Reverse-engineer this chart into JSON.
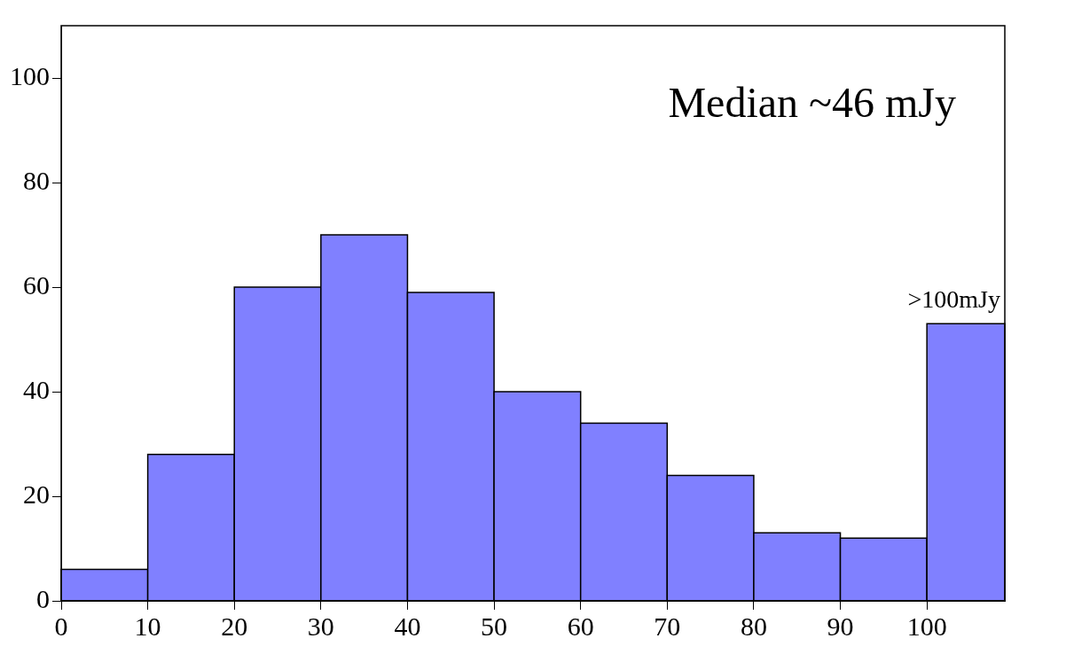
{
  "chart_data": {
    "type": "histogram",
    "bins": [
      0,
      10,
      20,
      30,
      40,
      50,
      60,
      70,
      80,
      90,
      100,
      109
    ],
    "values": [
      6,
      28,
      60,
      70,
      59,
      40,
      34,
      24,
      13,
      12,
      53
    ],
    "color": "#8080ff",
    "xlim": [
      0,
      109
    ],
    "xticks": [
      0,
      10,
      20,
      30,
      40,
      50,
      60,
      70,
      80,
      90,
      100
    ],
    "ylim": [
      0,
      110
    ],
    "yticks": [
      0,
      20,
      40,
      60,
      80,
      100
    ],
    "grid": false,
    "annotations": [
      "Median ~46 mJy",
      {
        "text": ">100mJy",
        "x": 104.5,
        "y": 53
      }
    ]
  }
}
